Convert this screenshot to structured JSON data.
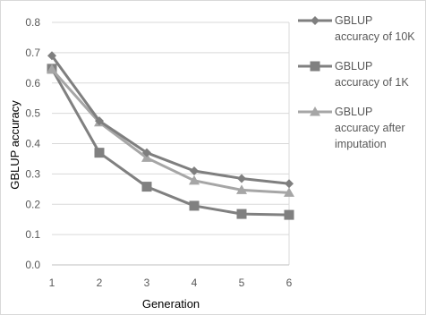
{
  "chart_data": {
    "type": "line",
    "title": "",
    "xlabel": "Generation",
    "ylabel": "GBLUP accuracy",
    "x": [
      1,
      2,
      3,
      4,
      5,
      6
    ],
    "x_tick_labels": [
      "1",
      "2",
      "3",
      "4",
      "5",
      "6"
    ],
    "ylim": [
      0,
      0.8
    ],
    "y_ticks": [
      0.0,
      0.1,
      0.2,
      0.3,
      0.4,
      0.5,
      0.6,
      0.7,
      0.8
    ],
    "y_tick_labels": [
      "0.0",
      "0.1",
      "0.2",
      "0.3",
      "0.4",
      "0.5",
      "0.6",
      "0.7",
      "0.8"
    ],
    "grid": "horizontal",
    "legend_position": "right",
    "series": [
      {
        "name": "GBLUP accuracy of 10K",
        "legend_lines": [
          "GBLUP",
          "accuracy of 10K"
        ],
        "marker": "diamond",
        "color": "#7f7f7f",
        "values": [
          0.69,
          0.475,
          0.37,
          0.31,
          0.285,
          0.268
        ]
      },
      {
        "name": "GBLUP accuracy of 1K",
        "legend_lines": [
          "GBLUP",
          "accuracy of 1K"
        ],
        "marker": "square",
        "color": "#808080",
        "values": [
          0.647,
          0.37,
          0.258,
          0.195,
          0.168,
          0.165
        ]
      },
      {
        "name": "GBLUP accuracy after imputation",
        "legend_lines": [
          "GBLUP",
          "accuracy after",
          "imputation"
        ],
        "marker": "triangle",
        "color": "#a6a6a6",
        "values": [
          0.645,
          0.47,
          0.353,
          0.278,
          0.247,
          0.238
        ]
      }
    ]
  }
}
